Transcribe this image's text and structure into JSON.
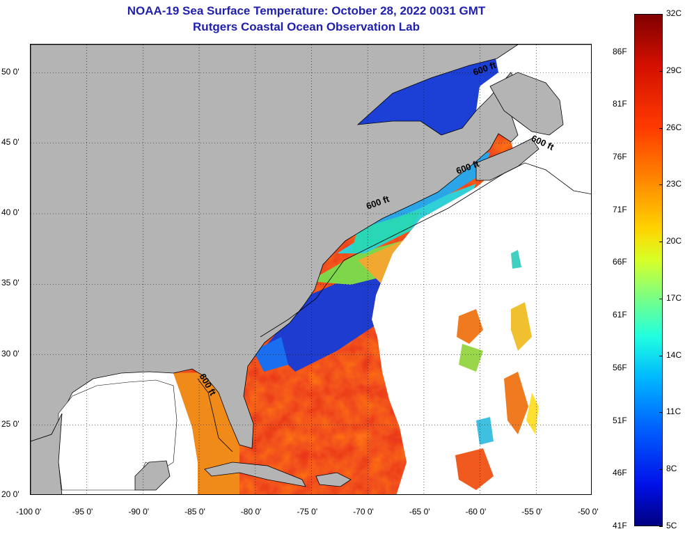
{
  "title": {
    "line1": "NOAA-19 Sea Surface Temperature:  October 28, 2022 0031 GMT",
    "line2": "Rutgers Coastal Ocean Observation Lab"
  },
  "map": {
    "lon_range": [
      -100,
      -50
    ],
    "lat_range": [
      20,
      52
    ],
    "lon_ticks": [
      {
        "value": -100,
        "label": "-100 0'"
      },
      {
        "value": -95,
        "label": "-95 0'"
      },
      {
        "value": -90,
        "label": "-90 0'"
      },
      {
        "value": -85,
        "label": "-85 0'"
      },
      {
        "value": -80,
        "label": "-80 0'"
      },
      {
        "value": -75,
        "label": "-75 0'"
      },
      {
        "value": -70,
        "label": "-70 0'"
      },
      {
        "value": -65,
        "label": "-65 0'"
      },
      {
        "value": -60,
        "label": "-60 0'"
      },
      {
        "value": -55,
        "label": "-55 0'"
      },
      {
        "value": -50,
        "label": "-50 0'"
      }
    ],
    "lat_ticks": [
      {
        "value": 20,
        "label": "20 0'"
      },
      {
        "value": 25,
        "label": "25 0'"
      },
      {
        "value": 30,
        "label": "30 0'"
      },
      {
        "value": 35,
        "label": "35 0'"
      },
      {
        "value": 40,
        "label": "40 0'"
      },
      {
        "value": 45,
        "label": "45 0'"
      },
      {
        "value": 50,
        "label": "50 0'"
      }
    ],
    "isobath_labels": [
      {
        "text": "600 ft",
        "lon": -60.5,
        "lat": 49.8
      },
      {
        "text": "600 ft",
        "lon": -55.5,
        "lat": 45.2
      },
      {
        "text": "600 ft",
        "lon": -62.0,
        "lat": 42.8
      },
      {
        "text": "600 ft",
        "lon": -70.0,
        "lat": 40.3
      },
      {
        "text": "600 ft",
        "lon": -85.0,
        "lat": 28.5
      }
    ],
    "land_color": "#b4b4b4",
    "cloud_color": "#ffffff"
  },
  "colorbar": {
    "min_c": 5,
    "max_c": 32,
    "celsius_labels": [
      "32C",
      "29C",
      "26C",
      "23C",
      "20C",
      "17C",
      "14C",
      "11C",
      "8C",
      "5C"
    ],
    "fahrenheit_labels": [
      "86F",
      "81F",
      "76F",
      "71F",
      "66F",
      "61F",
      "56F",
      "51F",
      "46F",
      "41F"
    ],
    "fahrenheit_values": [
      86,
      81,
      76,
      71,
      66,
      61,
      56,
      51,
      46,
      41
    ]
  }
}
